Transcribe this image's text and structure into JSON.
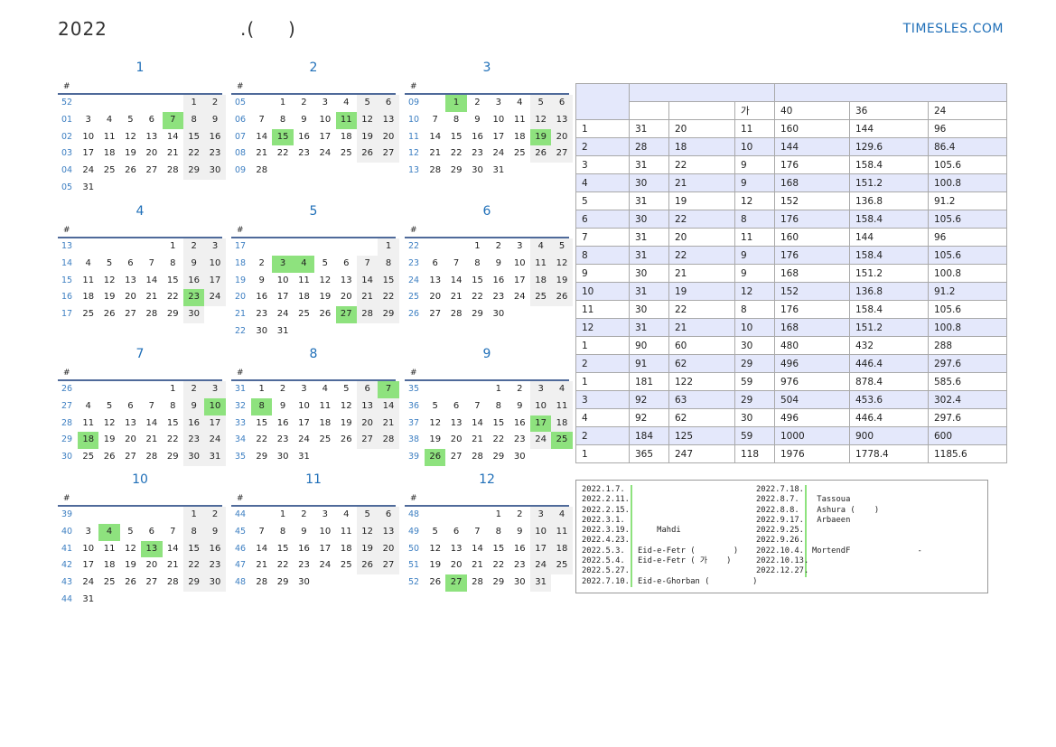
{
  "header": {
    "title": "2022                    .(     )",
    "brand": "TIMESLES.COM"
  },
  "week_symbol": "#",
  "months": [
    {
      "name": "1",
      "weeks": [
        [
          "52",
          "",
          "",
          "",
          "",
          "",
          "1",
          "2"
        ],
        [
          "01",
          "3",
          "4",
          "5",
          "6",
          "7",
          "8",
          "9"
        ],
        [
          "02",
          "10",
          "11",
          "12",
          "13",
          "14",
          "15",
          "16"
        ],
        [
          "03",
          "17",
          "18",
          "19",
          "20",
          "21",
          "22",
          "23"
        ],
        [
          "04",
          "24",
          "25",
          "26",
          "27",
          "28",
          "29",
          "30"
        ],
        [
          "05",
          "31",
          "",
          "",
          "",
          "",
          "",
          ""
        ]
      ],
      "holidays": [
        "7"
      ]
    },
    {
      "name": "2",
      "weeks": [
        [
          "05",
          "",
          "1",
          "2",
          "3",
          "4",
          "5",
          "6"
        ],
        [
          "06",
          "7",
          "8",
          "9",
          "10",
          "11",
          "12",
          "13"
        ],
        [
          "07",
          "14",
          "15",
          "16",
          "17",
          "18",
          "19",
          "20"
        ],
        [
          "08",
          "21",
          "22",
          "23",
          "24",
          "25",
          "26",
          "27"
        ],
        [
          "09",
          "28",
          "",
          "",
          "",
          "",
          "",
          ""
        ]
      ],
      "holidays": [
        "11",
        "15"
      ]
    },
    {
      "name": "3",
      "weeks": [
        [
          "09",
          "",
          "1",
          "2",
          "3",
          "4",
          "5",
          "6"
        ],
        [
          "10",
          "7",
          "8",
          "9",
          "10",
          "11",
          "12",
          "13"
        ],
        [
          "11",
          "14",
          "15",
          "16",
          "17",
          "18",
          "19",
          "20"
        ],
        [
          "12",
          "21",
          "22",
          "23",
          "24",
          "25",
          "26",
          "27"
        ],
        [
          "13",
          "28",
          "29",
          "30",
          "31",
          "",
          "",
          ""
        ]
      ],
      "holidays": [
        "1",
        "19"
      ]
    },
    {
      "name": "4",
      "weeks": [
        [
          "13",
          "",
          "",
          "",
          "",
          "1",
          "2",
          "3"
        ],
        [
          "14",
          "4",
          "5",
          "6",
          "7",
          "8",
          "9",
          "10"
        ],
        [
          "15",
          "11",
          "12",
          "13",
          "14",
          "15",
          "16",
          "17"
        ],
        [
          "16",
          "18",
          "19",
          "20",
          "21",
          "22",
          "23",
          "24"
        ],
        [
          "17",
          "25",
          "26",
          "27",
          "28",
          "29",
          "30",
          ""
        ]
      ],
      "holidays": [
        "23"
      ]
    },
    {
      "name": "5",
      "weeks": [
        [
          "17",
          "",
          "",
          "",
          "",
          "",
          "",
          "1"
        ],
        [
          "18",
          "2",
          "3",
          "4",
          "5",
          "6",
          "7",
          "8"
        ],
        [
          "19",
          "9",
          "10",
          "11",
          "12",
          "13",
          "14",
          "15"
        ],
        [
          "20",
          "16",
          "17",
          "18",
          "19",
          "20",
          "21",
          "22"
        ],
        [
          "21",
          "23",
          "24",
          "25",
          "26",
          "27",
          "28",
          "29"
        ],
        [
          "22",
          "30",
          "31",
          "",
          "",
          "",
          "",
          ""
        ]
      ],
      "holidays": [
        "3",
        "4",
        "27"
      ]
    },
    {
      "name": "6",
      "weeks": [
        [
          "22",
          "",
          "",
          "1",
          "2",
          "3",
          "4",
          "5"
        ],
        [
          "23",
          "6",
          "7",
          "8",
          "9",
          "10",
          "11",
          "12"
        ],
        [
          "24",
          "13",
          "14",
          "15",
          "16",
          "17",
          "18",
          "19"
        ],
        [
          "25",
          "20",
          "21",
          "22",
          "23",
          "24",
          "25",
          "26"
        ],
        [
          "26",
          "27",
          "28",
          "29",
          "30",
          "",
          "",
          ""
        ]
      ],
      "holidays": []
    },
    {
      "name": "7",
      "weeks": [
        [
          "26",
          "",
          "",
          "",
          "",
          "1",
          "2",
          "3"
        ],
        [
          "27",
          "4",
          "5",
          "6",
          "7",
          "8",
          "9",
          "10"
        ],
        [
          "28",
          "11",
          "12",
          "13",
          "14",
          "15",
          "16",
          "17"
        ],
        [
          "29",
          "18",
          "19",
          "20",
          "21",
          "22",
          "23",
          "24"
        ],
        [
          "30",
          "25",
          "26",
          "27",
          "28",
          "29",
          "30",
          "31"
        ]
      ],
      "holidays": [
        "10",
        "18"
      ]
    },
    {
      "name": "8",
      "weeks": [
        [
          "31",
          "1",
          "2",
          "3",
          "4",
          "5",
          "6",
          "7"
        ],
        [
          "32",
          "8",
          "9",
          "10",
          "11",
          "12",
          "13",
          "14"
        ],
        [
          "33",
          "15",
          "16",
          "17",
          "18",
          "19",
          "20",
          "21"
        ],
        [
          "34",
          "22",
          "23",
          "24",
          "25",
          "26",
          "27",
          "28"
        ],
        [
          "35",
          "29",
          "30",
          "31",
          "",
          "",
          "",
          ""
        ]
      ],
      "holidays": [
        "7",
        "8"
      ]
    },
    {
      "name": "9",
      "weeks": [
        [
          "35",
          "",
          "",
          "",
          "1",
          "2",
          "3",
          "4"
        ],
        [
          "36",
          "5",
          "6",
          "7",
          "8",
          "9",
          "10",
          "11"
        ],
        [
          "37",
          "12",
          "13",
          "14",
          "15",
          "16",
          "17",
          "18"
        ],
        [
          "38",
          "19",
          "20",
          "21",
          "22",
          "23",
          "24",
          "25"
        ],
        [
          "39",
          "26",
          "27",
          "28",
          "29",
          "30",
          "",
          ""
        ]
      ],
      "holidays": [
        "17",
        "25",
        "26"
      ]
    },
    {
      "name": "10",
      "weeks": [
        [
          "39",
          "",
          "",
          "",
          "",
          "",
          "1",
          "2"
        ],
        [
          "40",
          "3",
          "4",
          "5",
          "6",
          "7",
          "8",
          "9"
        ],
        [
          "41",
          "10",
          "11",
          "12",
          "13",
          "14",
          "15",
          "16"
        ],
        [
          "42",
          "17",
          "18",
          "19",
          "20",
          "21",
          "22",
          "23"
        ],
        [
          "43",
          "24",
          "25",
          "26",
          "27",
          "28",
          "29",
          "30"
        ],
        [
          "44",
          "31",
          "",
          "",
          "",
          "",
          "",
          ""
        ]
      ],
      "holidays": [
        "4",
        "13"
      ]
    },
    {
      "name": "11",
      "weeks": [
        [
          "44",
          "",
          "1",
          "2",
          "3",
          "4",
          "5",
          "6"
        ],
        [
          "45",
          "7",
          "8",
          "9",
          "10",
          "11",
          "12",
          "13"
        ],
        [
          "46",
          "14",
          "15",
          "16",
          "17",
          "18",
          "19",
          "20"
        ],
        [
          "47",
          "21",
          "22",
          "23",
          "24",
          "25",
          "26",
          "27"
        ],
        [
          "48",
          "28",
          "29",
          "30",
          "",
          "",
          "",
          ""
        ]
      ],
      "holidays": []
    },
    {
      "name": "12",
      "weeks": [
        [
          "48",
          "",
          "",
          "",
          "1",
          "2",
          "3",
          "4"
        ],
        [
          "49",
          "5",
          "6",
          "7",
          "8",
          "9",
          "10",
          "11"
        ],
        [
          "50",
          "12",
          "13",
          "14",
          "15",
          "16",
          "17",
          "18"
        ],
        [
          "51",
          "19",
          "20",
          "21",
          "22",
          "23",
          "24",
          "25"
        ],
        [
          "52",
          "26",
          "27",
          "28",
          "29",
          "30",
          "31",
          ""
        ]
      ],
      "holidays": [
        "27"
      ]
    }
  ],
  "stats": {
    "header2": [
      "",
      "",
      "가",
      "40",
      "36",
      "24"
    ],
    "rows": [
      [
        "1",
        "31",
        "20",
        "11",
        "160",
        "144",
        "96"
      ],
      [
        "2",
        "28",
        "18",
        "10",
        "144",
        "129.6",
        "86.4"
      ],
      [
        "3",
        "31",
        "22",
        "9",
        "176",
        "158.4",
        "105.6"
      ],
      [
        "4",
        "30",
        "21",
        "9",
        "168",
        "151.2",
        "100.8"
      ],
      [
        "5",
        "31",
        "19",
        "12",
        "152",
        "136.8",
        "91.2"
      ],
      [
        "6",
        "30",
        "22",
        "8",
        "176",
        "158.4",
        "105.6"
      ],
      [
        "7",
        "31",
        "20",
        "11",
        "160",
        "144",
        "96"
      ],
      [
        "8",
        "31",
        "22",
        "9",
        "176",
        "158.4",
        "105.6"
      ],
      [
        "9",
        "30",
        "21",
        "9",
        "168",
        "151.2",
        "100.8"
      ],
      [
        "10",
        "31",
        "19",
        "12",
        "152",
        "136.8",
        "91.2"
      ],
      [
        "11",
        "30",
        "22",
        "8",
        "176",
        "158.4",
        "105.6"
      ],
      [
        "12",
        "31",
        "21",
        "10",
        "168",
        "151.2",
        "100.8"
      ],
      [
        "1",
        "90",
        "60",
        "30",
        "480",
        "432",
        "288"
      ],
      [
        "2",
        "91",
        "62",
        "29",
        "496",
        "446.4",
        "297.6"
      ],
      [
        "1",
        "181",
        "122",
        "59",
        "976",
        "878.4",
        "585.6"
      ],
      [
        "3",
        "92",
        "63",
        "29",
        "504",
        "453.6",
        "302.4"
      ],
      [
        "4",
        "92",
        "62",
        "30",
        "496",
        "446.4",
        "297.6"
      ],
      [
        "2",
        "184",
        "125",
        "59",
        "1000",
        "900",
        "600"
      ],
      [
        "1",
        "365",
        "247",
        "118",
        "1976",
        "1778.4",
        "1185.6"
      ]
    ]
  },
  "holiday_list": {
    "left": [
      {
        "date": "2022.1.7.",
        "name": ""
      },
      {
        "date": "2022.2.11.",
        "name": ""
      },
      {
        "date": "2022.2.15.",
        "name": ""
      },
      {
        "date": "2022.3.1.",
        "name": ""
      },
      {
        "date": "2022.3.19.",
        "name": "    Mahdi"
      },
      {
        "date": "2022.4.23.",
        "name": ""
      },
      {
        "date": "2022.5.3.",
        "name": "Eid-e-Fetr (        )"
      },
      {
        "date": "2022.5.4.",
        "name": "Eid-e-Fetr ( 가    )"
      },
      {
        "date": "2022.5.27.",
        "name": ""
      },
      {
        "date": "2022.7.10.",
        "name": "Eid-e-Ghorban (         )"
      }
    ],
    "right": [
      {
        "date": "2022.7.18.",
        "name": ""
      },
      {
        "date": "2022.8.7.",
        "name": " Tassoua"
      },
      {
        "date": "2022.8.8.",
        "name": " Ashura (    )"
      },
      {
        "date": "2022.9.17.",
        "name": " Arbaeen"
      },
      {
        "date": "2022.9.25.",
        "name": ""
      },
      {
        "date": "2022.9.26.",
        "name": ""
      },
      {
        "date": "2022.10.4.",
        "name": "MortendF              -"
      },
      {
        "date": "2022.10.13.",
        "name": ""
      },
      {
        "date": "2022.12.27.",
        "name": ""
      }
    ]
  }
}
